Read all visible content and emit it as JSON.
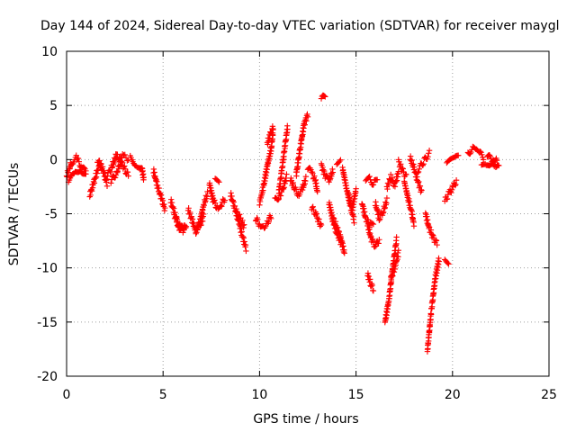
{
  "chart_data": {
    "type": "scatter",
    "title": "Day 144 of 2024, Sidereal Day-to-day VTEC variation (SDTVAR) for receiver maygl",
    "xlabel": "GPS time / hours",
    "ylabel": "SDTVAR / TECUs",
    "xlim": [
      0,
      25
    ],
    "ylim": [
      -20,
      10
    ],
    "xticks": [
      0,
      5,
      10,
      15,
      20,
      25
    ],
    "yticks": [
      -20,
      -15,
      -10,
      -5,
      0,
      5,
      10
    ],
    "grid": true,
    "marker": "+",
    "series": [
      {
        "name": "SDTVAR",
        "color": "#ff0000",
        "segments": [
          {
            "x": [
              0.0,
              0.25,
              0.5,
              0.75,
              1.0
            ],
            "y": [
              -1.5,
              -0.3,
              0.2,
              -0.6,
              -1.2
            ]
          },
          {
            "x": [
              0.1,
              0.4,
              0.7,
              1.0
            ],
            "y": [
              -2.0,
              -1.4,
              -0.8,
              -1.5
            ]
          },
          {
            "x": [
              1.2,
              1.4,
              1.6,
              1.8
            ],
            "y": [
              -3.3,
              -2.2,
              -1.0,
              -0.4
            ]
          },
          {
            "x": [
              1.6,
              1.85,
              2.1
            ],
            "y": [
              0.0,
              -0.8,
              -2.2
            ]
          },
          {
            "x": [
              2.0,
              2.3,
              2.6,
              2.9,
              3.2
            ],
            "y": [
              -1.8,
              -0.9,
              0.5,
              -0.5,
              -1.5
            ]
          },
          {
            "x": [
              2.3,
              2.6,
              2.9,
              3.2
            ],
            "y": [
              -2.0,
              -1.2,
              0.3,
              0.1
            ]
          },
          {
            "x": [
              3.3,
              3.6,
              3.9,
              4.0
            ],
            "y": [
              0.2,
              -0.4,
              -0.8,
              -1.8
            ]
          },
          {
            "x": [
              4.5,
              4.7,
              4.9,
              5.1
            ],
            "y": [
              -1.0,
              -2.4,
              -3.5,
              -4.6
            ]
          },
          {
            "x": [
              5.4,
              5.6,
              5.8,
              6.0,
              6.2
            ],
            "y": [
              -3.8,
              -5.0,
              -6.2,
              -6.6,
              -6.0
            ]
          },
          {
            "x": [
              5.6,
              5.85,
              6.1
            ],
            "y": [
              -5.2,
              -6.0,
              -6.6
            ]
          },
          {
            "x": [
              6.3,
              6.5,
              6.7,
              6.9,
              7.1
            ],
            "y": [
              -4.6,
              -5.6,
              -6.6,
              -6.2,
              -5.2
            ]
          },
          {
            "x": [
              6.7,
              6.9,
              7.1,
              7.3
            ],
            "y": [
              -6.6,
              -5.8,
              -4.2,
              -3.2
            ]
          },
          {
            "x": [
              7.4,
              7.6,
              7.8,
              8.0,
              8.2
            ],
            "y": [
              -2.2,
              -3.8,
              -4.4,
              -4.2,
              -3.6
            ]
          },
          {
            "x": [
              7.7,
              7.9
            ],
            "y": [
              -2.0,
              -2.2
            ]
          },
          {
            "x": [
              8.5,
              8.7,
              8.9,
              9.1,
              9.3
            ],
            "y": [
              -3.2,
              -4.4,
              -5.6,
              -7.0,
              -8.2
            ]
          },
          {
            "x": [
              8.8,
              9.0,
              9.2
            ],
            "y": [
              -4.8,
              -5.4,
              -6.2
            ]
          },
          {
            "x": [
              9.8,
              10.0,
              10.2,
              10.4,
              10.6
            ],
            "y": [
              -5.4,
              -6.0,
              -6.2,
              -5.8,
              -5.2
            ]
          },
          {
            "x": [
              10.0,
              10.2,
              10.4,
              10.6,
              10.7
            ],
            "y": [
              -4.0,
              -2.5,
              -0.6,
              1.0,
              2.6
            ]
          },
          {
            "x": [
              10.4,
              10.6,
              10.7
            ],
            "y": [
              1.5,
              2.6,
              3.0
            ]
          },
          {
            "x": [
              10.8,
              11.0,
              11.2,
              11.4
            ],
            "y": [
              -3.8,
              -3.4,
              -2.8,
              -1.6
            ]
          },
          {
            "x": [
              11.0,
              11.15,
              11.3,
              11.45
            ],
            "y": [
              -3.0,
              -1.0,
              1.0,
              3.0
            ]
          },
          {
            "x": [
              11.6,
              11.8,
              12.0,
              12.2,
              12.4
            ],
            "y": [
              -1.8,
              -2.6,
              -3.2,
              -2.8,
              -1.8
            ]
          },
          {
            "x": [
              11.9,
              12.1,
              12.3,
              12.5
            ],
            "y": [
              -1.4,
              1.0,
              3.2,
              4.2
            ]
          },
          {
            "x": [
              12.5,
              12.7,
              12.9,
              13.0
            ],
            "y": [
              -0.8,
              -1.2,
              -2.0,
              -3.0
            ]
          },
          {
            "x": [
              12.7,
              12.9,
              13.2
            ],
            "y": [
              -4.4,
              -5.0,
              -6.2
            ]
          },
          {
            "x": [
              13.2,
              13.4
            ],
            "y": [
              5.5,
              6.0
            ]
          },
          {
            "x": [
              13.2,
              13.4,
              13.6,
              13.8
            ],
            "y": [
              -0.5,
              -1.5,
              -2.0,
              -1.0
            ]
          },
          {
            "x": [
              13.6,
              13.8,
              14.0,
              14.2
            ],
            "y": [
              -4.0,
              -5.6,
              -6.8,
              -7.6
            ]
          },
          {
            "x": [
              13.8,
              14.0,
              14.2,
              14.4
            ],
            "y": [
              -5.4,
              -6.2,
              -7.2,
              -8.6
            ]
          },
          {
            "x": [
              14.0,
              14.2
            ],
            "y": [
              -0.2,
              0.0
            ]
          },
          {
            "x": [
              14.3,
              14.5,
              14.7,
              14.9
            ],
            "y": [
              -0.8,
              -2.6,
              -4.2,
              -5.6
            ]
          },
          {
            "x": [
              14.6,
              14.8,
              15.0
            ],
            "y": [
              -3.2,
              -4.6,
              -2.8
            ]
          },
          {
            "x": [
              15.3,
              15.5,
              15.7,
              15.9
            ],
            "y": [
              -4.0,
              -5.4,
              -6.0,
              -6.2
            ]
          },
          {
            "x": [
              15.5,
              15.7,
              15.9,
              16.1
            ],
            "y": [
              -2.0,
              -1.8,
              -2.2,
              -2.0
            ]
          },
          {
            "x": [
              15.6,
              15.8,
              16.0,
              16.2
            ],
            "y": [
              -6.0,
              -7.4,
              -8.0,
              -7.4
            ]
          },
          {
            "x": [
              16.0,
              16.2,
              16.4,
              16.6
            ],
            "y": [
              -4.0,
              -5.4,
              -4.8,
              -3.8
            ]
          },
          {
            "x": [
              15.6,
              15.75,
              15.9
            ],
            "y": [
              -10.6,
              -11.4,
              -12.0
            ]
          },
          {
            "x": [
              16.6,
              16.8,
              17.0,
              17.2
            ],
            "y": [
              -2.6,
              -1.6,
              -2.4,
              -1.2
            ]
          },
          {
            "x": [
              16.5,
              16.7,
              16.9,
              17.1
            ],
            "y": [
              -15.0,
              -13.0,
              -10.0,
              -7.4
            ]
          },
          {
            "x": [
              16.8,
              17.0,
              17.2
            ],
            "y": [
              -11.0,
              -10.0,
              -8.6
            ]
          },
          {
            "x": [
              17.2,
              17.4,
              17.6
            ],
            "y": [
              -0.2,
              -1.0,
              -1.6
            ]
          },
          {
            "x": [
              17.5,
              17.7,
              17.9,
              18.0
            ],
            "y": [
              -2.0,
              -3.6,
              -5.0,
              -6.0
            ]
          },
          {
            "x": [
              17.8,
              18.0,
              18.2,
              18.4
            ],
            "y": [
              0.2,
              -0.8,
              -2.0,
              -3.0
            ]
          },
          {
            "x": [
              18.2,
              18.5,
              18.8
            ],
            "y": [
              -1.0,
              -0.2,
              0.6
            ]
          },
          {
            "x": [
              18.6,
              18.8,
              19.0,
              19.2
            ],
            "y": [
              -5.0,
              -6.4,
              -7.2,
              -7.8
            ]
          },
          {
            "x": [
              18.7,
              18.9,
              19.1,
              19.3
            ],
            "y": [
              -17.6,
              -14.0,
              -11.0,
              -9.2
            ]
          },
          {
            "x": [
              19.6,
              19.8
            ],
            "y": [
              -9.2,
              -9.4
            ]
          },
          {
            "x": [
              19.6,
              19.8,
              20.0,
              20.2
            ],
            "y": [
              -3.8,
              -3.2,
              -2.6,
              -2.0
            ]
          },
          {
            "x": [
              19.7,
              19.9,
              20.1,
              20.3
            ],
            "y": [
              -0.4,
              -0.2,
              0.0,
              0.3
            ]
          },
          {
            "x": [
              20.8,
              21.0,
              21.2,
              21.4,
              21.6
            ],
            "y": [
              0.5,
              1.0,
              0.8,
              0.6,
              0.2
            ]
          },
          {
            "x": [
              21.5,
              21.7,
              21.9,
              22.1,
              22.3
            ],
            "y": [
              -0.4,
              -0.6,
              -0.8,
              -0.6,
              0.0
            ]
          },
          {
            "x": [
              21.8,
              22.0,
              22.2,
              22.4
            ],
            "y": [
              0.4,
              0.0,
              -0.4,
              -0.8
            ]
          }
        ]
      }
    ]
  }
}
